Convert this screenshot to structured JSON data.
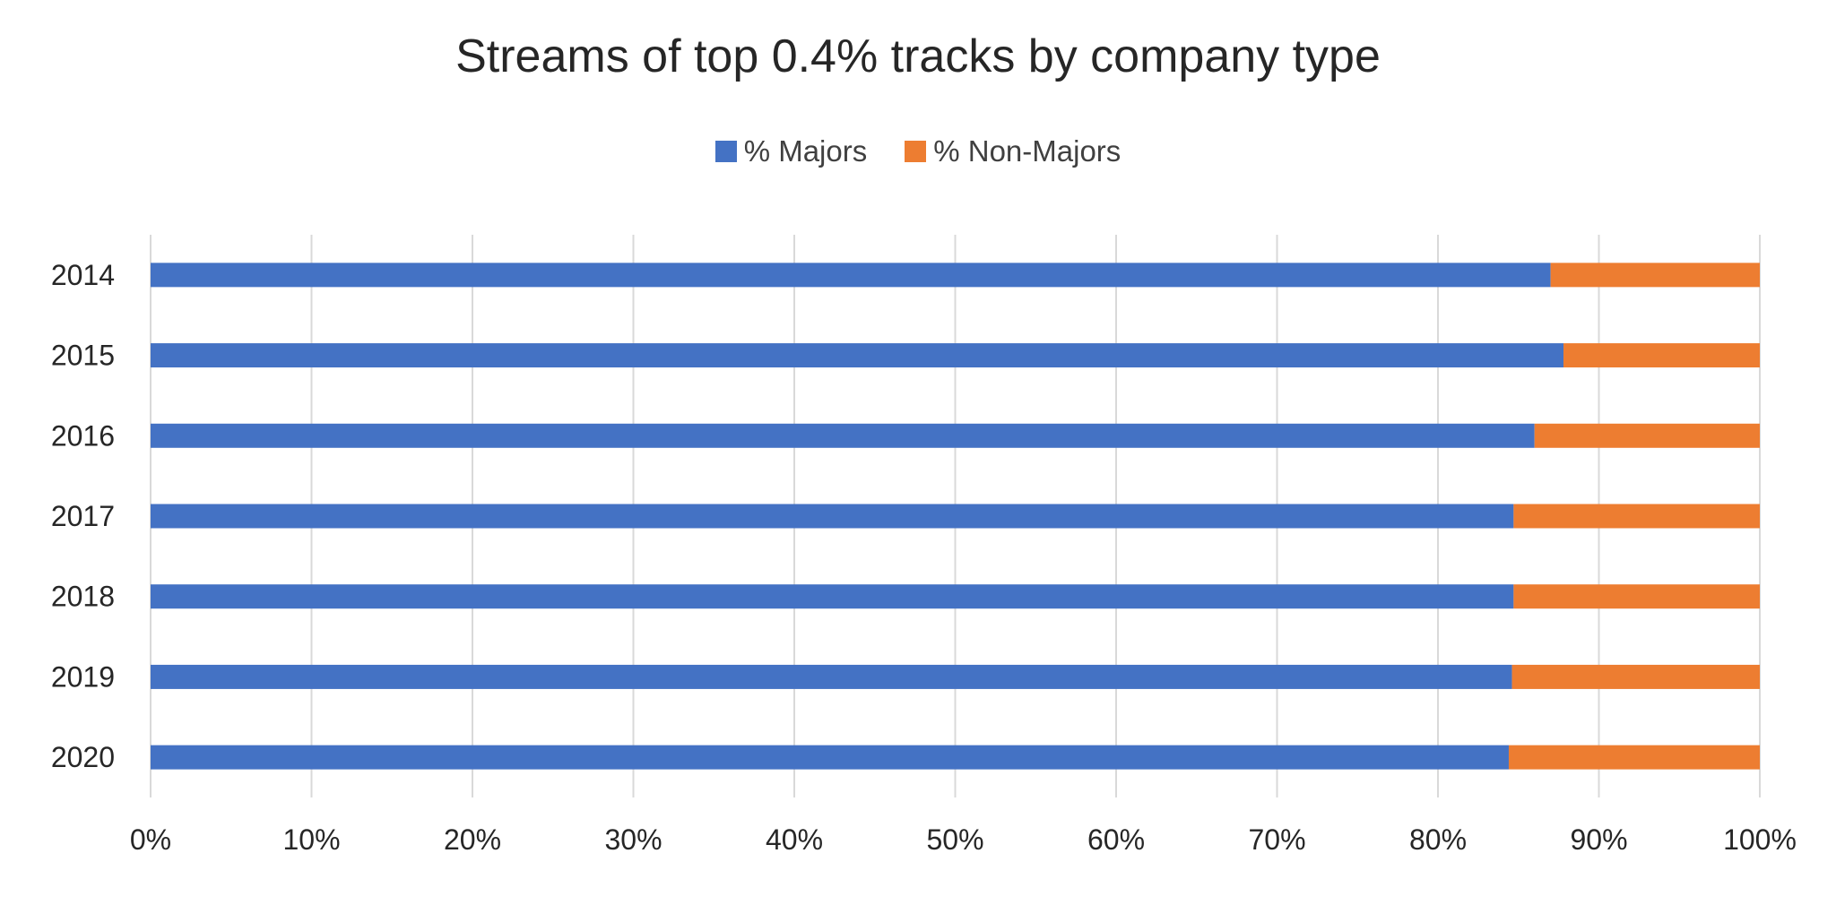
{
  "chart_data": {
    "type": "bar",
    "orientation": "horizontal",
    "stacked": "percent",
    "title": "Streams of top 0.4% tracks by company type",
    "categories": [
      "2014",
      "2015",
      "2016",
      "2017",
      "2018",
      "2019",
      "2020"
    ],
    "series": [
      {
        "name": "% Majors",
        "color": "#4472C4",
        "values": [
          87.0,
          87.8,
          86.0,
          84.7,
          84.7,
          84.6,
          84.4
        ]
      },
      {
        "name": "% Non-Majors",
        "color": "#ED7D31",
        "values": [
          13.0,
          12.2,
          14.0,
          15.3,
          15.3,
          15.4,
          15.6
        ]
      }
    ],
    "x_ticks": [
      "0%",
      "10%",
      "20%",
      "30%",
      "40%",
      "50%",
      "60%",
      "70%",
      "80%",
      "90%",
      "100%"
    ],
    "xlim": [
      0,
      100
    ],
    "grid": true,
    "legend_position": "top"
  }
}
